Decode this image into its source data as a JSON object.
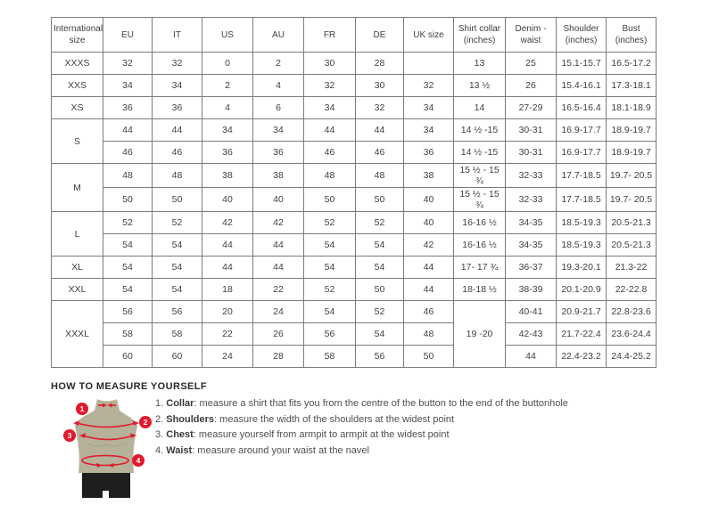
{
  "colors": {
    "accent-red": "#e2192c",
    "khaki": "#b6b199",
    "shorts": "#1e1e1c",
    "border-gray": "#7b7b7b",
    "table-text": "#3f3f3f"
  },
  "table": {
    "headers": [
      "International size",
      "EU",
      "IT",
      "US",
      "AU",
      "FR",
      "DE",
      "UK size",
      "Shirt collar (inches)",
      "Denim - waist",
      "Shoulder (inches)",
      "Bust (inches)"
    ],
    "rows": [
      [
        {
          "t": "XXXS",
          "n": "size-cell"
        },
        {
          "t": "32"
        },
        {
          "t": "32"
        },
        {
          "t": "0"
        },
        {
          "t": "2"
        },
        {
          "t": "30"
        },
        {
          "t": "28"
        },
        {
          "t": ""
        },
        {
          "t": "13"
        },
        {
          "t": "25"
        },
        {
          "t": "15.1-15.7"
        },
        {
          "t": "16.5-17.2"
        }
      ],
      [
        {
          "t": "XXS",
          "n": "size-cell"
        },
        {
          "t": "34"
        },
        {
          "t": "34"
        },
        {
          "t": "2"
        },
        {
          "t": "4"
        },
        {
          "t": "32"
        },
        {
          "t": "30"
        },
        {
          "t": "32"
        },
        {
          "t": "13 ½"
        },
        {
          "t": "26"
        },
        {
          "t": "15.4-16.1"
        },
        {
          "t": "17.3-18.1"
        }
      ],
      [
        {
          "t": "XS",
          "n": "size-cell"
        },
        {
          "t": "36"
        },
        {
          "t": "36"
        },
        {
          "t": "4"
        },
        {
          "t": "6"
        },
        {
          "t": "34"
        },
        {
          "t": "32"
        },
        {
          "t": "34"
        },
        {
          "t": "14"
        },
        {
          "t": "27-29"
        },
        {
          "t": "16.5-16.4"
        },
        {
          "t": "18.1-18.9"
        }
      ],
      [
        {
          "t": "S",
          "n": "size-cell",
          "rs": 2
        },
        {
          "t": "44"
        },
        {
          "t": "44"
        },
        {
          "t": "34"
        },
        {
          "t": "34"
        },
        {
          "t": "44"
        },
        {
          "t": "44"
        },
        {
          "t": "34"
        },
        {
          "t": "14 ½ -15"
        },
        {
          "t": "30-31"
        },
        {
          "t": "16.9-17.7"
        },
        {
          "t": "18.9-19.7"
        }
      ],
      [
        {
          "t": "46"
        },
        {
          "t": "46"
        },
        {
          "t": "36"
        },
        {
          "t": "36"
        },
        {
          "t": "46"
        },
        {
          "t": "46"
        },
        {
          "t": "36"
        },
        {
          "t": "14 ½ -15"
        },
        {
          "t": "30-31"
        },
        {
          "t": "16.9-17.7"
        },
        {
          "t": "18.9-19.7"
        }
      ],
      [
        {
          "t": "M",
          "n": "size-cell",
          "rs": 2
        },
        {
          "t": "48"
        },
        {
          "t": "48"
        },
        {
          "t": "38"
        },
        {
          "t": "38"
        },
        {
          "t": "48"
        },
        {
          "t": "48"
        },
        {
          "t": "38"
        },
        {
          "t": "15 ½ - 15 ¾"
        },
        {
          "t": "32-33"
        },
        {
          "t": "17.7-18.5"
        },
        {
          "t": "19.7- 20.5"
        }
      ],
      [
        {
          "t": "50"
        },
        {
          "t": "50"
        },
        {
          "t": "40"
        },
        {
          "t": "40"
        },
        {
          "t": "50"
        },
        {
          "t": "50"
        },
        {
          "t": "40"
        },
        {
          "t": "15 ½ - 15 ¾"
        },
        {
          "t": "32-33"
        },
        {
          "t": "17.7-18.5"
        },
        {
          "t": "19.7- 20.5"
        }
      ],
      [
        {
          "t": "L",
          "n": "size-cell",
          "rs": 2
        },
        {
          "t": "52"
        },
        {
          "t": "52"
        },
        {
          "t": "42"
        },
        {
          "t": "42"
        },
        {
          "t": "52"
        },
        {
          "t": "52"
        },
        {
          "t": "40"
        },
        {
          "t": "16-16 ½"
        },
        {
          "t": "34-35"
        },
        {
          "t": "18.5-19.3"
        },
        {
          "t": "20.5-21.3"
        }
      ],
      [
        {
          "t": "54"
        },
        {
          "t": "54"
        },
        {
          "t": "44"
        },
        {
          "t": "44"
        },
        {
          "t": "54"
        },
        {
          "t": "54"
        },
        {
          "t": "42"
        },
        {
          "t": "16-16 ½"
        },
        {
          "t": "34-35"
        },
        {
          "t": "18.5-19.3"
        },
        {
          "t": "20.5-21.3"
        }
      ],
      [
        {
          "t": "XL",
          "n": "size-cell"
        },
        {
          "t": "54"
        },
        {
          "t": "54"
        },
        {
          "t": "44"
        },
        {
          "t": "44"
        },
        {
          "t": "54"
        },
        {
          "t": "54"
        },
        {
          "t": "44"
        },
        {
          "t": "17- 17 ¾"
        },
        {
          "t": "36-37"
        },
        {
          "t": "19.3-20.1"
        },
        {
          "t": "21.3-22"
        }
      ],
      [
        {
          "t": "XXL",
          "n": "size-cell"
        },
        {
          "t": "54"
        },
        {
          "t": "54"
        },
        {
          "t": "18"
        },
        {
          "t": "22"
        },
        {
          "t": "52"
        },
        {
          "t": "50"
        },
        {
          "t": "44"
        },
        {
          "t": "18-18 ½"
        },
        {
          "t": "38-39"
        },
        {
          "t": "20.1-20.9"
        },
        {
          "t": "22-22.8"
        }
      ],
      [
        {
          "t": "XXXL",
          "n": "size-cell",
          "rs": 3
        },
        {
          "t": "56"
        },
        {
          "t": "56"
        },
        {
          "t": "20"
        },
        {
          "t": "24"
        },
        {
          "t": "54"
        },
        {
          "t": "52"
        },
        {
          "t": "46"
        },
        {
          "t": "19 -20",
          "rs": 3
        },
        {
          "t": "40-41"
        },
        {
          "t": "20.9-21.7"
        },
        {
          "t": "22.8-23.6"
        }
      ],
      [
        {
          "t": "58"
        },
        {
          "t": "58"
        },
        {
          "t": "22"
        },
        {
          "t": "26"
        },
        {
          "t": "56"
        },
        {
          "t": "54"
        },
        {
          "t": "48"
        },
        {
          "t": "42-43"
        },
        {
          "t": "21.7-22.4"
        },
        {
          "t": "23.6-24.4"
        }
      ],
      [
        {
          "t": "60"
        },
        {
          "t": "60"
        },
        {
          "t": "24"
        },
        {
          "t": "28"
        },
        {
          "t": "58"
        },
        {
          "t": "56"
        },
        {
          "t": "50"
        },
        {
          "t": "44"
        },
        {
          "t": "22.4-23.2"
        },
        {
          "t": "24.4-25.2"
        }
      ]
    ]
  },
  "measure": {
    "title": "HOW TO MEASURE YOURSELF",
    "markers": [
      "1",
      "2",
      "3",
      "4"
    ],
    "steps": [
      {
        "num": "1.",
        "label": "Collar",
        "rest": ": measure a shirt that fits you from the centre of the button to the end of the buttonhole"
      },
      {
        "num": "2.",
        "label": "Shoulders",
        "rest": ": measure the width of the shoulders at the widest point"
      },
      {
        "num": "3.",
        "label": "Chest",
        "rest": ": measure yourself from armpit to armpit at the widest point"
      },
      {
        "num": "4.",
        "label": "Waist",
        "rest": ": measure around your waist at the navel"
      }
    ]
  }
}
